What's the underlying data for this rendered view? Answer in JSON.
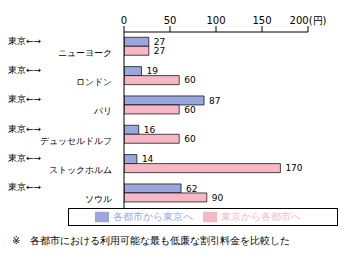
{
  "chart_data": {
    "type": "bar",
    "orientation": "horizontal",
    "categories": [
      "東京←→ニューヨーク",
      "東京←→ロンドン",
      "東京←→パリ",
      "東京←→デュッセルドルフ",
      "東京←→ストックホルム",
      "東京←→ソウル"
    ],
    "series": [
      {
        "name": "各都市から東京へ",
        "color": "#9aa6dc",
        "values": [
          27,
          19,
          87,
          16,
          14,
          62
        ]
      },
      {
        "name": "東京から各都市へ",
        "color": "#f7b8c6",
        "values": [
          27,
          60,
          60,
          60,
          170,
          90
        ]
      }
    ],
    "xlim": [
      0,
      200
    ],
    "xticks": [
      0,
      50,
      100,
      150,
      {
        "value": 200,
        "label": "200(円)"
      }
    ],
    "grid": false,
    "legend": "bottom",
    "data_labels": true,
    "annotations": [
      "※　各都市における利用可能な最も低廉な割引料金を比較した"
    ]
  }
}
